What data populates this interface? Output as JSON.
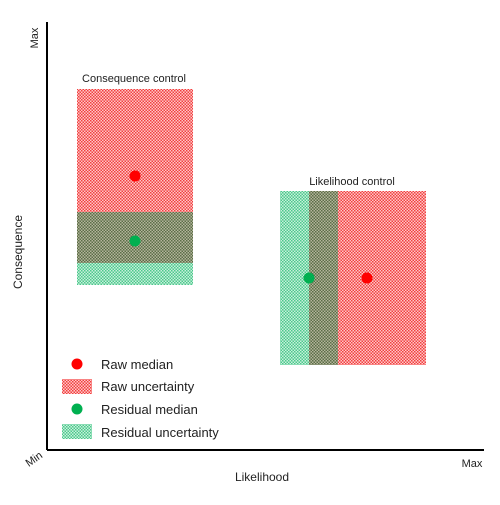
{
  "axes": {
    "x_label": "Likelihood",
    "y_label": "Consequence",
    "x_max": "Max",
    "y_max": "Max",
    "origin": "Min"
  },
  "regions": {
    "consequence_control": {
      "label": "Consequence control"
    },
    "likelihood_control": {
      "label": "Likelihood control"
    }
  },
  "legend": {
    "raw_median": "Raw median",
    "raw_uncertainty": "Raw uncertainty",
    "residual_median": "Residual median",
    "residual_uncertainty": "Residual uncertainty"
  },
  "colors": {
    "raw": "#ff0000",
    "residual": "#00b050",
    "axis": "#000000"
  }
}
